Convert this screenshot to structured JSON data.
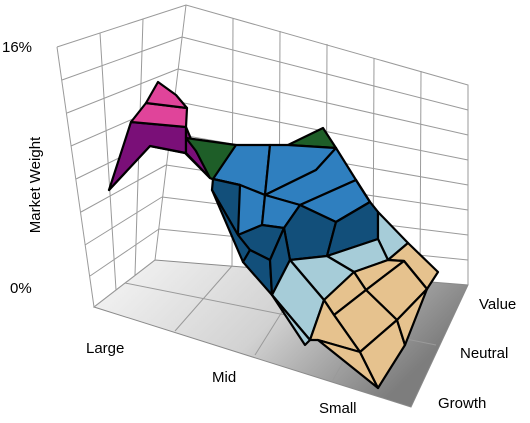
{
  "chart_data": {
    "type": "surface",
    "ylabel": "Market Weight",
    "z_ticks": [
      "16%",
      "0%"
    ],
    "zlim": [
      0,
      16
    ],
    "x_axis_labels": [
      "Large",
      "Mid",
      "Small"
    ],
    "y_axis_labels": [
      "Value",
      "Neutral",
      "Growth"
    ],
    "grid": true,
    "colors": {
      "pink": "#e0449a",
      "purple": "#7a0f78",
      "dark_green": "#1e5e28",
      "blue": "#2f7fbf",
      "navy": "#124f7a",
      "light_blue": "#a6ccd8",
      "tan": "#e6c28e",
      "floor_light": "#f4f4f4",
      "floor_dark": "#8a8a8a"
    }
  }
}
